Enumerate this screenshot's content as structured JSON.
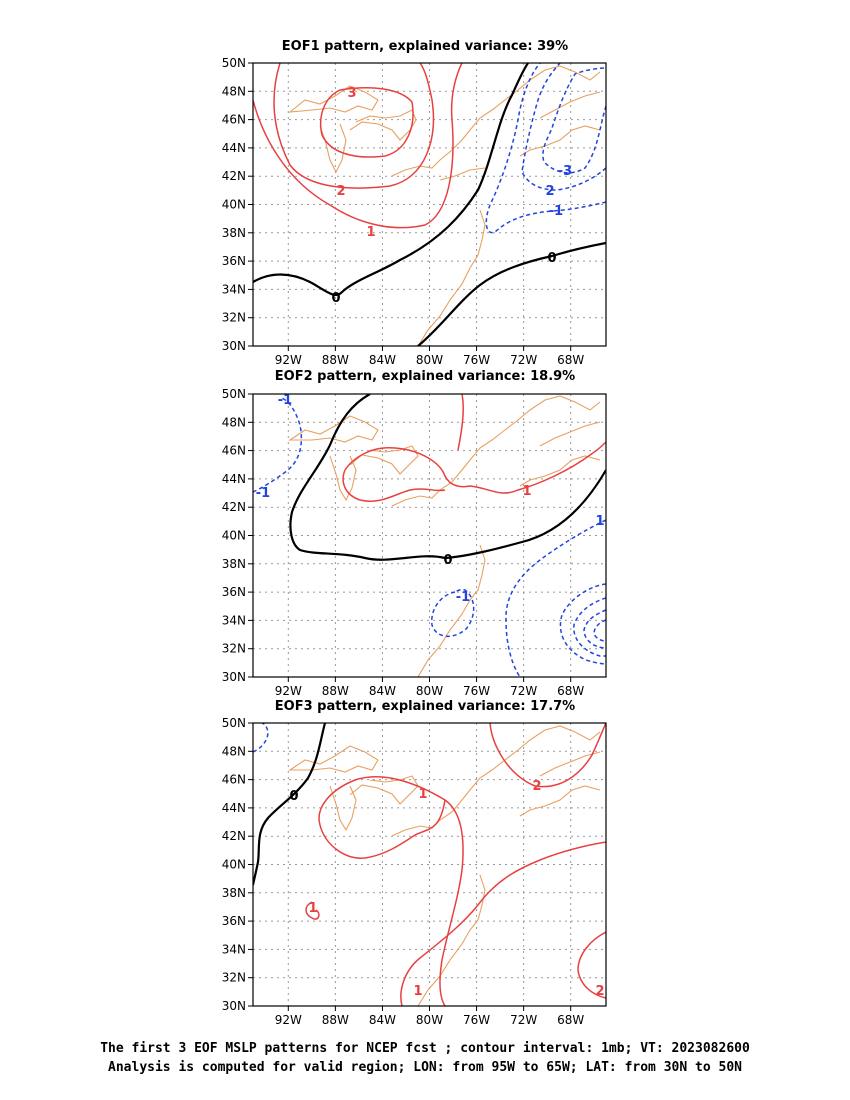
{
  "map_data": {
    "panels": [
      {
        "title": "EOF1 pattern, explained variance: 39%"
      },
      {
        "title": "EOF2 pattern, explained variance: 18.9%"
      },
      {
        "title": "EOF3 pattern, explained variance: 17.7%"
      }
    ],
    "lat_ticks": [
      "50N",
      "48N",
      "46N",
      "44N",
      "42N",
      "40N",
      "38N",
      "36N",
      "34N",
      "32N",
      "30N"
    ],
    "lon_ticks": [
      "92W",
      "88W",
      "84W",
      "80W",
      "76W",
      "72W",
      "68W"
    ],
    "colors": {
      "positive": "#e84040",
      "negative": "#2244dd",
      "zero": "#000000",
      "coast": "#e8a060",
      "grid": "#999999"
    }
  },
  "caption": {
    "line1": "The first 3 EOF MSLP patterns for NCEP fcst ; contour interval: 1mb; VT: 2023082600",
    "line2": "Analysis is computed for valid region; LON: from 95W to 65W; LAT: from 30N to 50N"
  }
}
